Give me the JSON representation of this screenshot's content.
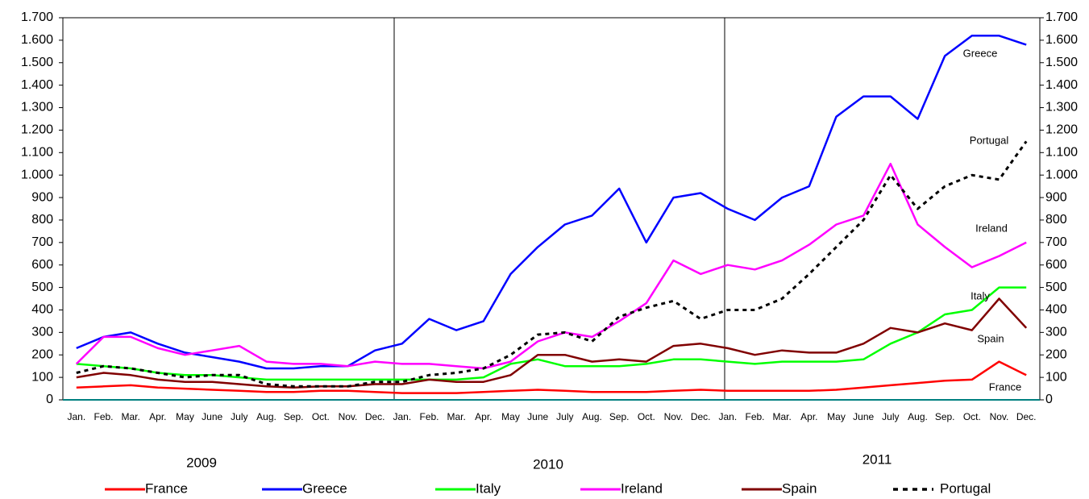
{
  "chart_data": {
    "type": "line",
    "categories": [
      "Jan.",
      "Feb.",
      "Mar.",
      "Apr.",
      "May",
      "June",
      "July",
      "Aug.",
      "Sep.",
      "Oct.",
      "Nov.",
      "Dec.",
      "Jan.",
      "Feb.",
      "Mar.",
      "Apr.",
      "May",
      "June",
      "July",
      "Aug.",
      "Sep.",
      "Oct.",
      "Nov.",
      "Dec.",
      "Jan.",
      "Feb.",
      "Mar.",
      "Apr.",
      "May",
      "June",
      "July",
      "Aug.",
      "Sep.",
      "Oct.",
      "Nov.",
      "Dec."
    ],
    "years": [
      "2009",
      "2010",
      "2011"
    ],
    "series": [
      {
        "name": "France",
        "color": "#ff0000",
        "values": [
          55,
          60,
          65,
          55,
          50,
          45,
          40,
          35,
          35,
          40,
          40,
          35,
          30,
          30,
          30,
          35,
          40,
          45,
          40,
          35,
          35,
          35,
          40,
          45,
          40,
          40,
          40,
          40,
          45,
          55,
          65,
          75,
          85,
          90,
          170,
          110
        ]
      },
      {
        "name": "Greece",
        "color": "#0000ff",
        "values": [
          230,
          280,
          300,
          250,
          210,
          190,
          170,
          140,
          140,
          150,
          150,
          220,
          250,
          360,
          310,
          350,
          560,
          680,
          780,
          820,
          940,
          700,
          900,
          920,
          850,
          800,
          900,
          950,
          1260,
          1350,
          1350,
          1250,
          1530,
          1620,
          1620,
          1580
        ]
      },
      {
        "name": "Italy",
        "color": "#00ff00",
        "values": [
          160,
          150,
          140,
          120,
          110,
          110,
          100,
          90,
          90,
          90,
          90,
          90,
          90,
          90,
          90,
          100,
          160,
          180,
          150,
          150,
          150,
          160,
          180,
          180,
          170,
          160,
          170,
          170,
          170,
          180,
          250,
          300,
          380,
          400,
          500,
          500
        ]
      },
      {
        "name": "Ireland",
        "color": "#ff00ff",
        "values": [
          160,
          280,
          280,
          230,
          200,
          220,
          240,
          170,
          160,
          160,
          150,
          170,
          160,
          160,
          150,
          140,
          170,
          260,
          300,
          280,
          350,
          430,
          620,
          560,
          600,
          580,
          620,
          690,
          780,
          820,
          1050,
          780,
          680,
          590,
          640,
          700
        ]
      },
      {
        "name": "Spain",
        "color": "#800000",
        "values": [
          100,
          120,
          110,
          90,
          80,
          80,
          70,
          60,
          55,
          60,
          60,
          70,
          70,
          90,
          80,
          80,
          110,
          200,
          200,
          170,
          180,
          170,
          240,
          250,
          230,
          200,
          220,
          210,
          210,
          250,
          320,
          300,
          340,
          310,
          450,
          320
        ]
      },
      {
        "name": "Portugal",
        "color": "#000000",
        "dash": true,
        "values": [
          120,
          150,
          140,
          120,
          100,
          110,
          110,
          70,
          60,
          60,
          60,
          80,
          80,
          110,
          120,
          140,
          200,
          290,
          300,
          260,
          370,
          410,
          440,
          360,
          400,
          400,
          450,
          560,
          680,
          800,
          1000,
          850,
          950,
          1000,
          980,
          1150
        ]
      }
    ],
    "ylim": [
      0,
      1700
    ],
    "yticks": [
      0,
      100,
      200,
      300,
      400,
      500,
      600,
      700,
      800,
      900,
      {
        "value": 1000,
        "label": "1.000"
      },
      {
        "value": 1100,
        "label": "1.100"
      },
      {
        "value": 1200,
        "label": "1.200"
      },
      {
        "value": 1300,
        "label": "1.300"
      },
      {
        "value": 1400,
        "label": "1.400"
      },
      {
        "value": 1500,
        "label": "1.500"
      },
      {
        "value": 1600,
        "label": "1.600"
      },
      {
        "value": 1700,
        "label": "1.700"
      }
    ],
    "y2lim": [
      0,
      1700
    ],
    "y2ticks": [
      0,
      100,
      200,
      300,
      400,
      500,
      600,
      700,
      800,
      900,
      {
        "value": 1000,
        "label": "1.000"
      },
      {
        "value": 1100,
        "label": "1.100"
      },
      {
        "value": 1200,
        "label": "1.200"
      },
      {
        "value": 1300,
        "label": "1.300"
      },
      {
        "value": 1400,
        "label": "1.400"
      },
      {
        "value": 1500,
        "label": "1.500"
      },
      {
        "value": 1600,
        "label": "1.600"
      },
      {
        "value": 1700,
        "label": "1.700"
      }
    ],
    "grid": false
  }
}
